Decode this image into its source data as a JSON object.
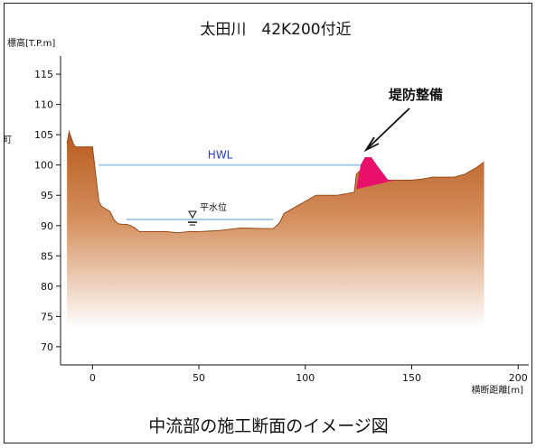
{
  "title": "太田川　42K200付近",
  "y_axis_title": "標高[T.P.m]",
  "x_axis_title": "横断距離[m]",
  "caption": "中流部の施工断面のイメージ図",
  "side_char": "町",
  "annotations": {
    "hwl": "HWL",
    "normal_water_level": "平水位",
    "levee": "堤防整備"
  },
  "colors": {
    "ground_top": "#b85a1e",
    "ground_bottom": "#ffffff",
    "water_line": "#a9cce8",
    "levee": "#e8106a"
  },
  "chart_data": {
    "type": "area",
    "title": "太田川　42K200付近",
    "xlabel": "横断距離[m]",
    "ylabel": "標高[T.P.m]",
    "xlim": [
      -15,
      205
    ],
    "ylim": [
      67,
      118
    ],
    "x_ticks": [
      0,
      50,
      100,
      150,
      200
    ],
    "y_ticks": [
      70,
      75,
      80,
      85,
      90,
      95,
      100,
      105,
      110,
      115
    ],
    "grid": false,
    "water_levels": [
      {
        "label": "HWL",
        "elevation": 100,
        "x_from": 3,
        "x_to": 128
      },
      {
        "label": "平水位",
        "elevation": 91,
        "x_from": 16,
        "x_to": 85
      }
    ],
    "levee": {
      "label": "堤防整備",
      "x": [
        124,
        126,
        128,
        131,
        134,
        139,
        142
      ],
      "y": [
        96,
        100,
        101.3,
        101.3,
        99.8,
        97.5,
        97.5
      ]
    },
    "ground_profile": {
      "x": [
        -12,
        -11,
        -10,
        -9,
        -8,
        0,
        1,
        2,
        3,
        4,
        5,
        6,
        8,
        9,
        10,
        12,
        14,
        16,
        18,
        20,
        22,
        30,
        35,
        40,
        45,
        50,
        60,
        70,
        80,
        85,
        88,
        90,
        95,
        100,
        105,
        110,
        115,
        120,
        123,
        124,
        126,
        130,
        134,
        140,
        145,
        150,
        155,
        160,
        165,
        170,
        175,
        180,
        184
      ],
      "y": [
        103.5,
        105.5,
        104.5,
        103.5,
        103,
        103,
        100,
        97,
        94,
        93.3,
        93,
        92.8,
        92.4,
        91.8,
        91,
        90.3,
        90.2,
        90.2,
        90,
        89.6,
        89,
        89,
        89,
        88.8,
        89,
        89,
        89.2,
        89.6,
        89.5,
        89.5,
        90.5,
        92,
        93,
        94,
        95,
        95,
        95,
        95.3,
        95.5,
        98.5,
        99.2,
        99,
        97.5,
        97.5,
        97.5,
        97.5,
        97.7,
        98,
        98,
        98,
        98.5,
        99.5,
        100.5
      ]
    },
    "ground_base_elevation": 73
  }
}
